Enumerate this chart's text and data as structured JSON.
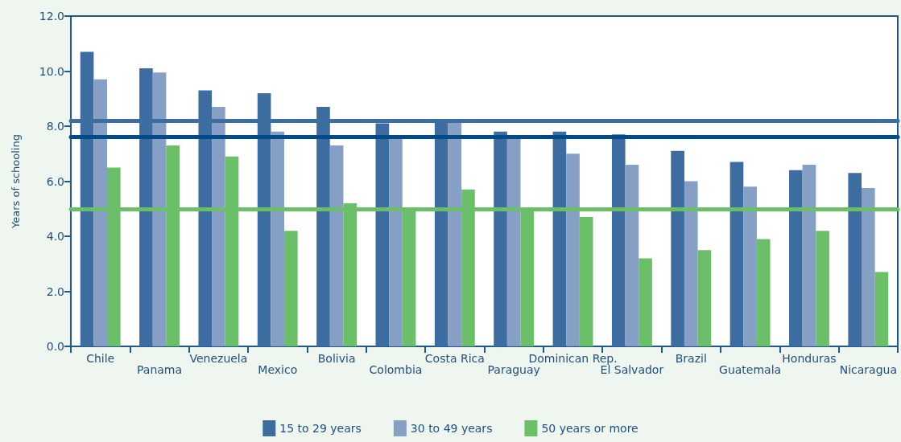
{
  "chart_data": {
    "type": "bar",
    "ylabel": "Years of schooling",
    "categories": [
      "Chile",
      "Panama",
      "Venezuela",
      "Mexico",
      "Bolivia",
      "Colombia",
      "Costa Rica",
      "Paraguay",
      "Dominican Rep.",
      "El Salvador",
      "Brazil",
      "Guatemala",
      "Honduras",
      "Nicaragua"
    ],
    "series": [
      {
        "name": "15 to 29 years",
        "color": "#3d6da0",
        "values": [
          10.7,
          10.1,
          9.3,
          9.2,
          8.7,
          8.1,
          8.2,
          7.8,
          7.8,
          7.7,
          7.1,
          6.7,
          6.4,
          6.3
        ]
      },
      {
        "name": "30 to 49 years",
        "color": "#869fc5",
        "values": [
          9.7,
          9.95,
          8.7,
          7.8,
          7.3,
          7.6,
          8.2,
          7.6,
          7.0,
          6.6,
          6.0,
          5.8,
          6.6,
          5.75
        ]
      },
      {
        "name": "50 years or more",
        "color": "#6cbf69",
        "values": [
          6.5,
          7.3,
          6.9,
          4.2,
          5.2,
          5.0,
          5.7,
          5.0,
          4.7,
          3.2,
          3.5,
          3.9,
          4.2,
          2.7
        ]
      }
    ],
    "ref_lines": [
      {
        "axis": "y",
        "value": 8.2,
        "color": "#3e6ea0"
      },
      {
        "axis": "y",
        "value": 7.6,
        "color": "#004a87"
      },
      {
        "axis": "y",
        "value": 5.0,
        "color": "#6cbf69"
      }
    ],
    "ylim": [
      0,
      12
    ],
    "yticks": [
      {
        "value": 0,
        "label": "0.0"
      },
      {
        "value": 2,
        "label": "2.0"
      },
      {
        "value": 4,
        "label": "4.0"
      },
      {
        "value": 6,
        "label": "6.0"
      },
      {
        "value": 8,
        "label": "8.0"
      },
      {
        "value": 10,
        "label": "10.0"
      },
      {
        "value": 12,
        "label": "12.0"
      }
    ],
    "grid": false,
    "legend": "bottom"
  }
}
